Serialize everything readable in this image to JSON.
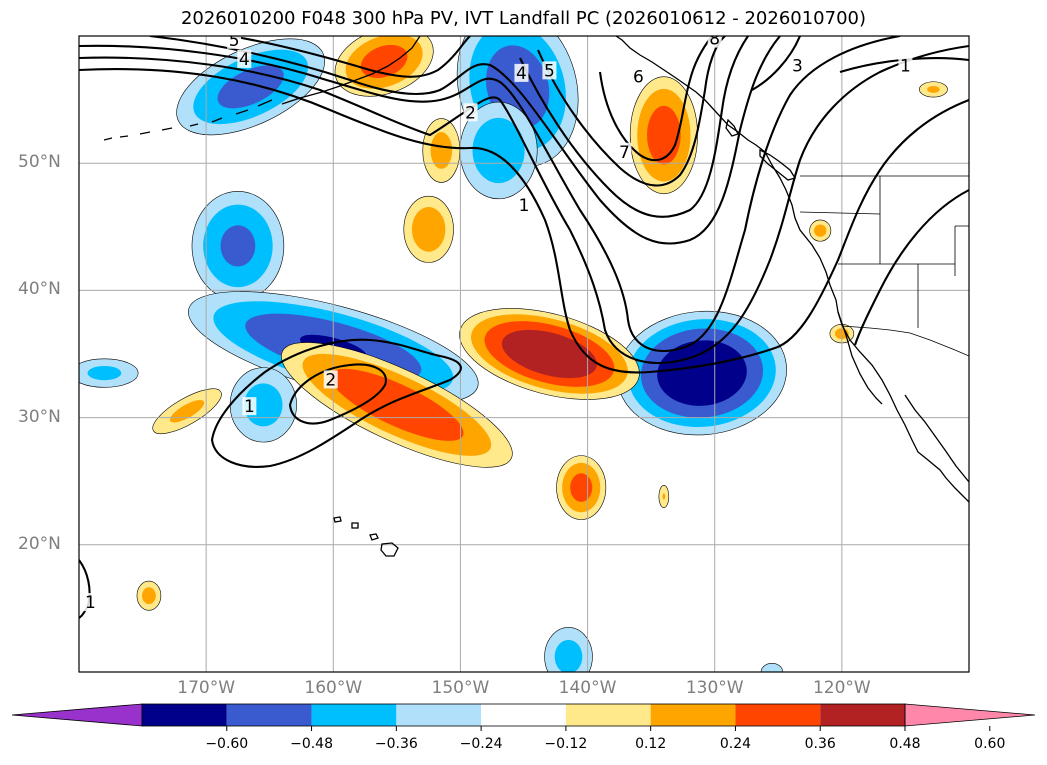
{
  "title": "2026010200 F048 300 hPa PV, IVT Landfall PC (2026010612 - 2026010700)",
  "map": {
    "projection": "equirectangular",
    "lon_range": [
      -180,
      -110
    ],
    "lat_range": [
      10,
      60
    ],
    "grid": true,
    "lat_labels": [
      {
        "value": 50,
        "text": "50°N"
      },
      {
        "value": 40,
        "text": "40°N"
      },
      {
        "value": 30,
        "text": "30°N"
      },
      {
        "value": 20,
        "text": "20°N"
      }
    ],
    "lon_labels": [
      {
        "value": -170,
        "text": "170°W"
      },
      {
        "value": -160,
        "text": "160°W"
      },
      {
        "value": -150,
        "text": "150°W"
      },
      {
        "value": -140,
        "text": "140°W"
      },
      {
        "value": -130,
        "text": "130°W"
      },
      {
        "value": -120,
        "text": "120°W"
      }
    ],
    "contour_labels": [
      {
        "text": "5",
        "lon": -167.8,
        "lat": 59.7
      },
      {
        "text": "4",
        "lon": -167.0,
        "lat": 58.2
      },
      {
        "text": "2",
        "lon": -149.2,
        "lat": 54.0
      },
      {
        "text": "4",
        "lon": -145.2,
        "lat": 57.1
      },
      {
        "text": "5",
        "lon": -143.0,
        "lat": 57.3
      },
      {
        "text": "1",
        "lon": -145.0,
        "lat": 46.7
      },
      {
        "text": "6",
        "lon": -136.0,
        "lat": 56.8
      },
      {
        "text": "7",
        "lon": -137.1,
        "lat": 50.9
      },
      {
        "text": "8",
        "lon": -130.0,
        "lat": 59.8
      },
      {
        "text": "3",
        "lon": -123.5,
        "lat": 57.7
      },
      {
        "text": "1",
        "lon": -115.0,
        "lat": 57.7
      },
      {
        "text": "2",
        "lon": -160.2,
        "lat": 33.0
      },
      {
        "text": "1",
        "lon": -166.6,
        "lat": 30.9
      },
      {
        "text": "1",
        "lon": -179.1,
        "lat": 15.5
      }
    ],
    "colors": {
      "-0.60_-0.48": "#00008b",
      "-0.48_-0.36": "#3a5bd0",
      "-0.36_-0.24": "#00bfff",
      "-0.24_-0.12": "#b0e0fa",
      "0.12_0.24": "#ffe98b",
      "0.24_0.36": "#ffa500",
      "0.36_0.48": "#ff4500",
      "0.48_0.60": "#b22222"
    },
    "anomalies": [
      {
        "sign": "negative",
        "peak": -0.42,
        "lon": -166.5,
        "lat": 56.0,
        "rx": 5.5,
        "ry": 2.6,
        "rot": -25
      },
      {
        "sign": "negative",
        "peak": -0.45,
        "lon": -145.5,
        "lat": 56.0,
        "rx": 4.0,
        "ry": 5.5,
        "rot": -15
      },
      {
        "sign": "negative",
        "peak": -0.34,
        "lon": -147.0,
        "lat": 51.0,
        "rx": 2.8,
        "ry": 3.5,
        "rot": 0
      },
      {
        "sign": "negative",
        "peak": -0.4,
        "lon": -167.5,
        "lat": 43.5,
        "rx": 3.2,
        "ry": 3.8,
        "rot": 0
      },
      {
        "sign": "negative",
        "peak": -0.5,
        "lon": -160.0,
        "lat": 35.5,
        "rx": 10.0,
        "ry": 2.8,
        "rot": 15
      },
      {
        "sign": "negative",
        "peak": -0.3,
        "lon": -165.5,
        "lat": 31.0,
        "rx": 2.5,
        "ry": 2.8,
        "rot": 0
      },
      {
        "sign": "negative",
        "peak": -0.28,
        "lon": -178.0,
        "lat": 33.5,
        "rx": 2.6,
        "ry": 1.1,
        "rot": 0
      },
      {
        "sign": "negative",
        "peak": -0.62,
        "lon": -131.0,
        "lat": 33.5,
        "rx": 5.5,
        "ry": 4.0,
        "rot": -5
      },
      {
        "sign": "negative",
        "peak": -0.3,
        "lon": -141.5,
        "lat": 11.2,
        "rx": 1.8,
        "ry": 2.2,
        "rot": 0
      },
      {
        "sign": "negative",
        "peak": -0.2,
        "lon": -125.5,
        "lat": 10.0,
        "rx": 1.0,
        "ry": 0.8,
        "rot": 0
      },
      {
        "sign": "positive",
        "peak": 0.43,
        "lon": -156.0,
        "lat": 58.0,
        "rx": 3.5,
        "ry": 2.2,
        "rot": -20
      },
      {
        "sign": "positive",
        "peak": 0.3,
        "lon": -151.5,
        "lat": 51.0,
        "rx": 1.4,
        "ry": 2.4,
        "rot": 0
      },
      {
        "sign": "positive",
        "peak": 0.34,
        "lon": -152.5,
        "lat": 44.8,
        "rx": 1.8,
        "ry": 2.4,
        "rot": 0
      },
      {
        "sign": "positive",
        "peak": 0.44,
        "lon": -134.0,
        "lat": 52.2,
        "rx": 2.3,
        "ry": 4.0,
        "rot": 0
      },
      {
        "sign": "positive",
        "peak": 0.48,
        "lon": -155.0,
        "lat": 31.0,
        "rx": 8.5,
        "ry": 2.4,
        "rot": 25
      },
      {
        "sign": "positive",
        "peak": 0.62,
        "lon": -143.0,
        "lat": 35.0,
        "rx": 6.0,
        "ry": 2.6,
        "rot": 15
      },
      {
        "sign": "positive",
        "peak": 0.28,
        "lon": -171.5,
        "lat": 30.5,
        "rx": 3.0,
        "ry": 1.0,
        "rot": -30
      },
      {
        "sign": "positive",
        "peak": 0.42,
        "lon": -140.5,
        "lat": 24.5,
        "rx": 1.7,
        "ry": 2.2,
        "rot": 0
      },
      {
        "sign": "positive",
        "peak": 0.25,
        "lon": -134.0,
        "lat": 23.8,
        "rx": 0.4,
        "ry": 0.9,
        "rot": 0
      },
      {
        "sign": "positive",
        "peak": 0.3,
        "lon": -174.5,
        "lat": 16.0,
        "rx": 0.9,
        "ry": 1.1,
        "rot": 0
      },
      {
        "sign": "positive",
        "peak": 0.27,
        "lon": -112.8,
        "lat": 55.8,
        "rx": 1.1,
        "ry": 0.6,
        "rot": 0
      },
      {
        "sign": "positive",
        "peak": 0.3,
        "lon": -121.7,
        "lat": 44.7,
        "rx": 0.8,
        "ry": 0.8,
        "rot": 0
      },
      {
        "sign": "positive",
        "peak": 0.3,
        "lon": -120.0,
        "lat": 36.6,
        "rx": 0.9,
        "ry": 0.7,
        "rot": 0
      }
    ]
  },
  "colorbar": {
    "colors": [
      "#9932cc",
      "#00008b",
      "#3a5bd0",
      "#00bfff",
      "#b0e0fa",
      "#ffffff",
      "#ffe98b",
      "#ffa500",
      "#ff4500",
      "#b22222",
      "#ff88aa"
    ],
    "ticks": [
      "−0.60",
      "−0.48",
      "−0.36",
      "−0.24",
      "−0.12",
      "0.12",
      "0.24",
      "0.36",
      "0.48",
      "0.60"
    ]
  }
}
